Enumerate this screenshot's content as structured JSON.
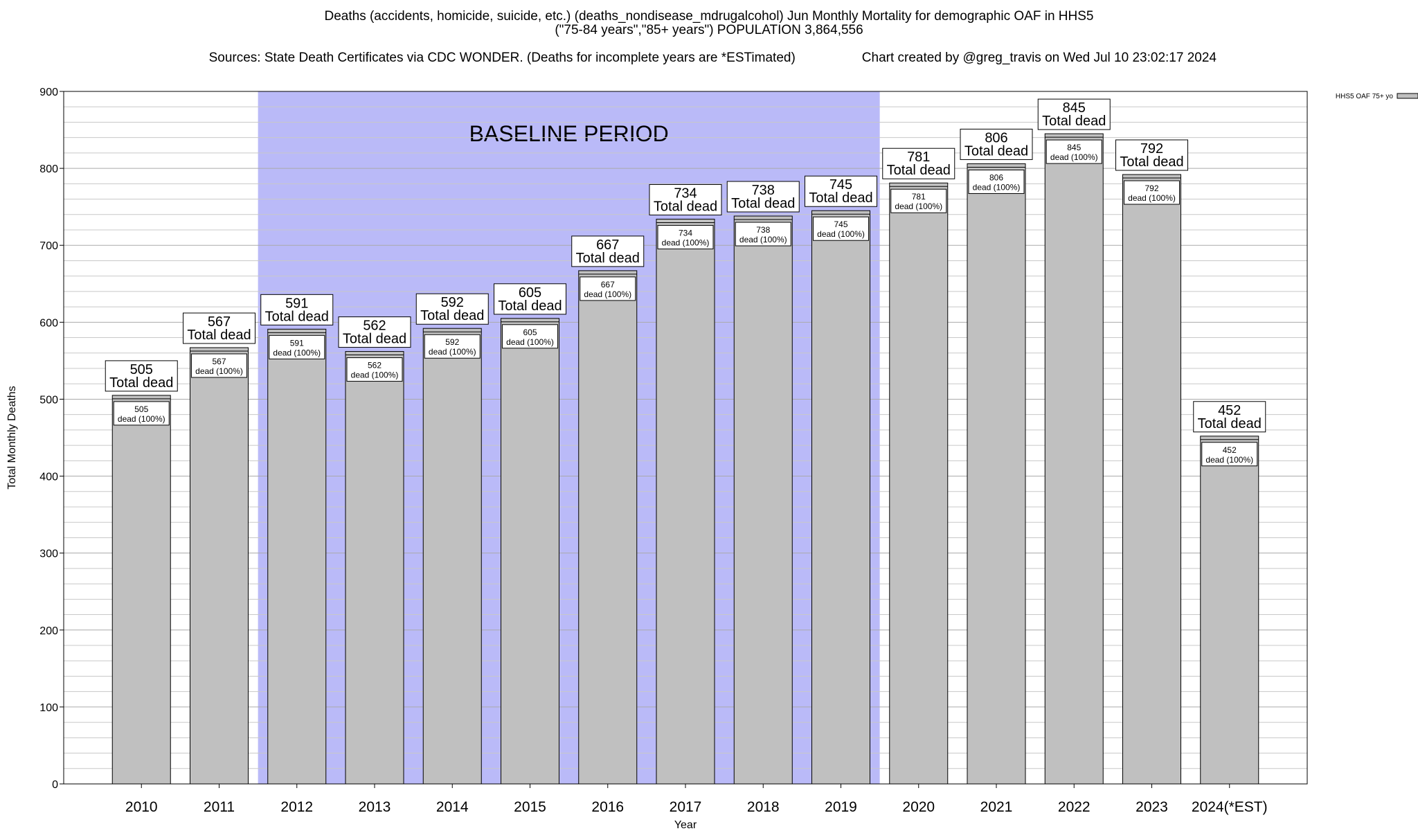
{
  "header": {
    "line1": "Deaths (accidents, homicide, suicide, etc.) (deaths_nondisease_mdrugalcohol) Jun Monthly Mortality for demographic OAF in HHS5",
    "line2": "(\"75-84 years\",\"85+ years\") POPULATION 3,864,556",
    "sources": "Sources: State Death Certificates via CDC WONDER. (Deaths for incomplete years are *ESTimated)",
    "credit": "Chart created by @greg_travis on Wed Jul 10 23:02:17 2024"
  },
  "colors": {
    "bar_fill": "#c0c0c0",
    "baseline_fill": "#babaf8",
    "grid": "#c8c8c8",
    "axis": "#000000"
  },
  "chart_data": {
    "type": "bar",
    "categories": [
      "2010",
      "2011",
      "2012",
      "2013",
      "2014",
      "2015",
      "2016",
      "2017",
      "2018",
      "2019",
      "2020",
      "2021",
      "2022",
      "2023",
      "2024(*EST)"
    ],
    "series": [
      {
        "name": "HHS5 OAF 75+ yo",
        "values": [
          505,
          567,
          591,
          562,
          592,
          605,
          667,
          734,
          738,
          745,
          781,
          806,
          845,
          792,
          452
        ]
      }
    ],
    "top_label_suffix": "Total dead",
    "inner_label_suffix": "dead (100%)",
    "xlabel": "Year",
    "ylabel": "Total Monthly Deaths",
    "ylim": [
      0,
      900
    ],
    "yticks": [
      0,
      100,
      200,
      300,
      400,
      500,
      600,
      700,
      800,
      900
    ],
    "minor_grid_step": 20,
    "grid": true,
    "legend": {
      "placement": "top-right",
      "entries": [
        "HHS5 OAF 75+ yo"
      ]
    },
    "annotations": [
      {
        "text": "BASELINE PERIOD",
        "x_start": "2012",
        "x_end": "2019"
      }
    ]
  }
}
